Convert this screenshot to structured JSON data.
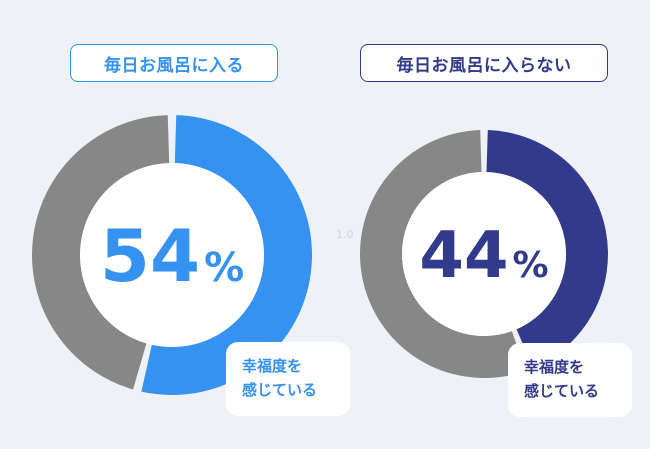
{
  "colors": {
    "background": "#eef2f6",
    "gray": "#878787",
    "blue": "#3592f0",
    "navy": "#323a8c",
    "white": "#ffffff"
  },
  "stray_label": "1.0",
  "chart_data": [
    {
      "type": "pie",
      "title": "毎日お風呂に入る",
      "value": 54,
      "unit": "%",
      "slices": [
        {
          "name": "幸福度を感じている",
          "value": 54,
          "color": "#3592f0"
        },
        {
          "name": "",
          "value": 46,
          "color": "#878787"
        }
      ],
      "annotation": [
        "幸福度を",
        "感じている"
      ]
    },
    {
      "type": "pie",
      "title": "毎日お風呂に入らない",
      "value": 44,
      "unit": "%",
      "slices": [
        {
          "name": "幸福度を感じている",
          "value": 44,
          "color": "#323a8c"
        },
        {
          "name": "",
          "value": 56,
          "color": "#878787"
        }
      ],
      "annotation": [
        "幸福度を",
        "感じている"
      ]
    }
  ]
}
